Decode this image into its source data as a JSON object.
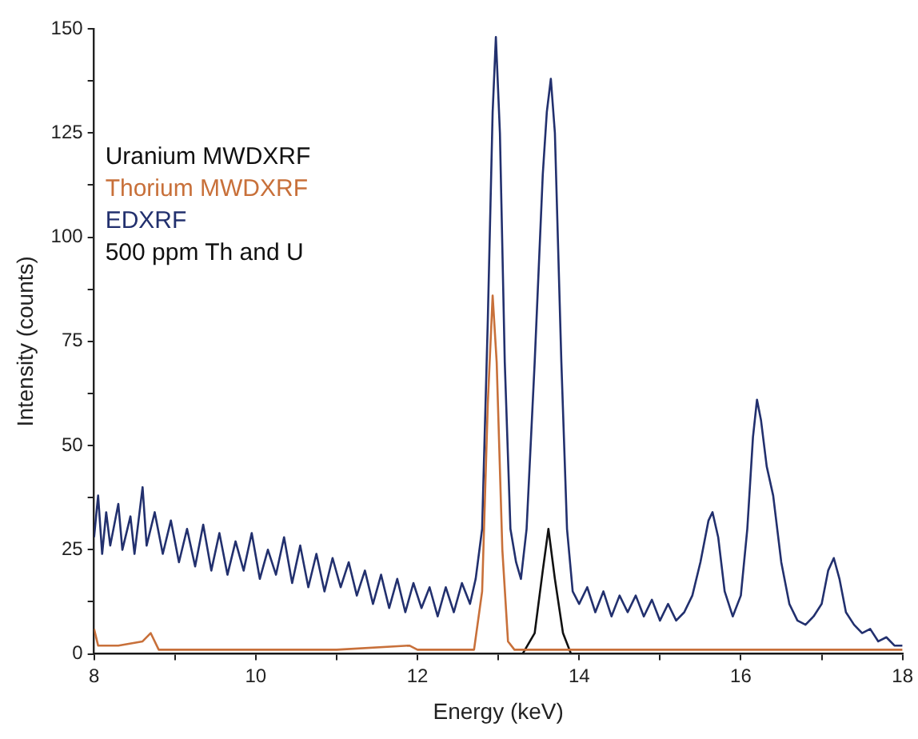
{
  "chart_data": {
    "type": "line",
    "xlabel": "Energy (keV)",
    "ylabel": "Intensity (counts)",
    "xlim": [
      8,
      18
    ],
    "xticks": [
      8,
      {
        "value": 9,
        "label": null
      },
      10,
      {
        "value": 11,
        "label": null
      },
      12,
      {
        "value": 13,
        "label": null
      },
      14,
      {
        "value": 15,
        "label": null
      },
      16,
      {
        "value": 17,
        "label": null
      },
      18
    ],
    "ylim": [
      0,
      150
    ],
    "yticks": [
      0,
      {
        "value": 12.5,
        "label": null
      },
      25,
      {
        "value": 37.5,
        "label": null
      },
      50,
      {
        "value": 62.5,
        "label": null
      },
      75,
      {
        "value": 87.5,
        "label": null
      },
      100,
      {
        "value": 112.5,
        "label": null
      },
      125,
      {
        "value": 137.5,
        "label": null
      },
      150
    ],
    "grid": false,
    "legend": "top left",
    "marker": "none",
    "line_style": "solid",
    "annotations": [
      "500 ppm Th and U"
    ],
    "series": [
      {
        "name": "EDXRF",
        "color": "#22306e",
        "x": [
          8.0,
          8.05,
          8.1,
          8.15,
          8.2,
          8.3,
          8.35,
          8.45,
          8.5,
          8.6,
          8.65,
          8.75,
          8.85,
          8.95,
          9.05,
          9.15,
          9.25,
          9.35,
          9.45,
          9.55,
          9.65,
          9.75,
          9.85,
          9.95,
          10.05,
          10.15,
          10.25,
          10.35,
          10.45,
          10.55,
          10.65,
          10.75,
          10.85,
          10.95,
          11.05,
          11.15,
          11.25,
          11.35,
          11.45,
          11.55,
          11.65,
          11.75,
          11.85,
          11.95,
          12.05,
          12.15,
          12.25,
          12.35,
          12.45,
          12.55,
          12.65,
          12.72,
          12.8,
          12.87,
          12.93,
          12.97,
          13.02,
          13.08,
          13.15,
          13.22,
          13.28,
          13.35,
          13.45,
          13.55,
          13.6,
          13.65,
          13.7,
          13.78,
          13.85,
          13.92,
          14.0,
          14.1,
          14.2,
          14.3,
          14.4,
          14.5,
          14.6,
          14.7,
          14.8,
          14.9,
          15.0,
          15.1,
          15.2,
          15.3,
          15.4,
          15.5,
          15.6,
          15.65,
          15.72,
          15.8,
          15.9,
          16.0,
          16.08,
          16.15,
          16.2,
          16.25,
          16.32,
          16.4,
          16.5,
          16.6,
          16.7,
          16.8,
          16.9,
          17.0,
          17.08,
          17.15,
          17.22,
          17.3,
          17.4,
          17.5,
          17.6,
          17.7,
          17.8,
          17.9,
          18.0
        ],
        "values": [
          28,
          38,
          24,
          34,
          26,
          36,
          25,
          33,
          24,
          40,
          26,
          34,
          24,
          32,
          22,
          30,
          21,
          31,
          20,
          29,
          19,
          27,
          20,
          29,
          18,
          25,
          19,
          28,
          17,
          26,
          16,
          24,
          15,
          23,
          16,
          22,
          14,
          20,
          12,
          19,
          11,
          18,
          10,
          17,
          11,
          16,
          9,
          16,
          10,
          17,
          12,
          18,
          30,
          80,
          130,
          148,
          125,
          70,
          30,
          22,
          18,
          30,
          70,
          115,
          130,
          138,
          125,
          70,
          30,
          15,
          12,
          16,
          10,
          15,
          9,
          14,
          10,
          14,
          9,
          13,
          8,
          12,
          8,
          10,
          14,
          22,
          32,
          34,
          28,
          15,
          9,
          14,
          30,
          52,
          61,
          56,
          45,
          38,
          22,
          12,
          8,
          7,
          9,
          12,
          20,
          23,
          18,
          10,
          7,
          5,
          6,
          3,
          4,
          2,
          2
        ]
      },
      {
        "name": "Uranium MWDXRF",
        "color": "#111111",
        "x": [
          8,
          9,
          10,
          11,
          12,
          13,
          13.3,
          13.45,
          13.55,
          13.62,
          13.7,
          13.8,
          13.9,
          15,
          16,
          17,
          18
        ],
        "values": [
          0,
          0,
          0,
          0,
          0,
          0,
          0,
          5,
          20,
          30,
          18,
          5,
          0,
          0,
          0,
          0,
          0
        ]
      },
      {
        "name": "Thorium MWDXRF",
        "color": "#c8703a",
        "x": [
          8,
          8.05,
          8.3,
          8.6,
          8.7,
          8.8,
          9,
          10,
          11,
          11.9,
          12,
          12.7,
          12.8,
          12.87,
          12.93,
          12.98,
          13.05,
          13.12,
          13.2,
          14,
          15,
          16,
          17,
          18
        ],
        "values": [
          6,
          2,
          2,
          3,
          5,
          1,
          1,
          1,
          1,
          2,
          1,
          1,
          15,
          60,
          86,
          70,
          25,
          3,
          1,
          1,
          1,
          1,
          1,
          1
        ]
      }
    ]
  }
}
